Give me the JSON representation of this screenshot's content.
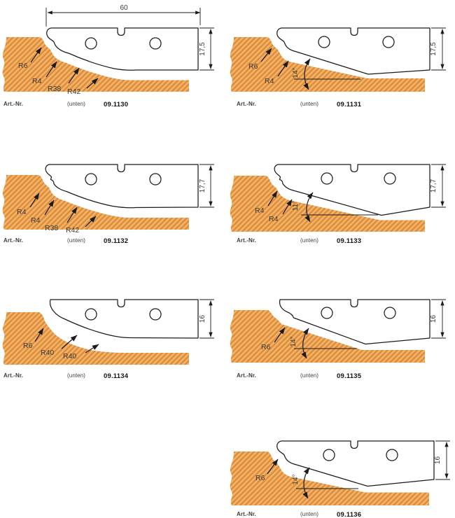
{
  "page": {
    "background": "#ffffff",
    "art_label": "Art.-Nr.",
    "unten_label": "(unten)"
  },
  "colors": {
    "wood_base": "#F0A452",
    "wood_grain_dark": "#CD8430",
    "wood_grain_light": "#F6BE82",
    "line": "#1b1b1b",
    "text": "#3a3a38"
  },
  "panels": [
    {
      "art_nr": "09.1130",
      "height_label": "17,5",
      "width_label": "60",
      "radius_labels": [
        "R6",
        "R4",
        "R38",
        "R42"
      ],
      "angle_label": null
    },
    {
      "art_nr": "09.1131",
      "height_label": "17,5",
      "width_label": null,
      "radius_labels": [
        "R6",
        "R4"
      ],
      "angle_label": "14°"
    },
    {
      "art_nr": "09.1132",
      "height_label": "17,7",
      "width_label": null,
      "radius_labels": [
        "R4",
        "R4",
        "R38",
        "R42"
      ],
      "angle_label": null
    },
    {
      "art_nr": "09.1133",
      "height_label": "17,7",
      "width_label": null,
      "radius_labels": [
        "R4",
        "R4"
      ],
      "angle_label": "11°"
    },
    {
      "art_nr": "09.1134",
      "height_label": "16",
      "width_label": null,
      "radius_labels": [
        "R6",
        "R40",
        "R40"
      ],
      "angle_label": null
    },
    {
      "art_nr": "09.1135",
      "height_label": "16",
      "width_label": null,
      "radius_labels": [
        "R6"
      ],
      "angle_label": "14°"
    },
    {
      "art_nr": "09.1136",
      "height_label": "16",
      "width_label": null,
      "radius_labels": [
        "R6"
      ],
      "angle_label": "14°"
    }
  ]
}
